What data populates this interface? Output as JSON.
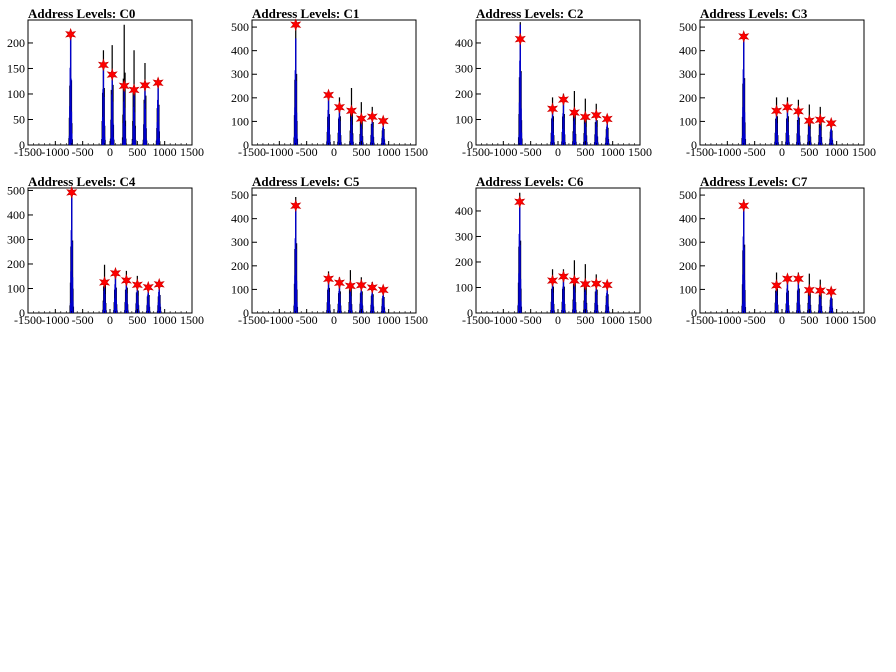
{
  "chart_data": [
    {
      "type": "histogram",
      "title": "Address Levels: C0",
      "xlim": [
        -1500,
        1500
      ],
      "ylim": [
        0,
        245
      ],
      "xticks": [
        -1500,
        -1000,
        -500,
        0,
        500,
        1000,
        1500
      ],
      "yticks": [
        0,
        50,
        100,
        150,
        200
      ],
      "black_peaks": [
        [
          -720,
          210
        ],
        [
          -120,
          185
        ],
        [
          40,
          195
        ],
        [
          260,
          235
        ],
        [
          440,
          185
        ],
        [
          640,
          160
        ],
        [
          880,
          130
        ]
      ],
      "blue_peaks": [
        [
          -720,
          215
        ],
        [
          -120,
          155
        ],
        [
          40,
          140
        ],
        [
          260,
          120
        ],
        [
          440,
          105
        ],
        [
          640,
          115
        ],
        [
          880,
          125
        ]
      ],
      "markers": [
        [
          -720,
          217
        ],
        [
          -120,
          157
        ],
        [
          40,
          138
        ],
        [
          260,
          116
        ],
        [
          440,
          108
        ],
        [
          640,
          117
        ],
        [
          880,
          122
        ]
      ]
    },
    {
      "type": "histogram",
      "title": "Address Levels: C1",
      "xlim": [
        -1500,
        1500
      ],
      "ylim": [
        0,
        530
      ],
      "xticks": [
        -1500,
        -1000,
        -500,
        0,
        500,
        1000,
        1500
      ],
      "yticks": [
        0,
        100,
        200,
        300,
        400,
        500
      ],
      "black_peaks": [
        [
          -700,
          500
        ],
        [
          -100,
          215
        ],
        [
          100,
          200
        ],
        [
          320,
          240
        ],
        [
          500,
          180
        ],
        [
          700,
          160
        ],
        [
          900,
          110
        ]
      ],
      "blue_peaks": [
        [
          -700,
          450
        ],
        [
          -100,
          210
        ],
        [
          100,
          165
        ],
        [
          320,
          140
        ],
        [
          500,
          110
        ],
        [
          700,
          120
        ],
        [
          900,
          100
        ]
      ],
      "markers": [
        [
          -700,
          510
        ],
        [
          -100,
          212
        ],
        [
          100,
          160
        ],
        [
          320,
          145
        ],
        [
          500,
          112
        ],
        [
          700,
          120
        ],
        [
          900,
          102
        ]
      ]
    },
    {
      "type": "histogram",
      "title": "Address Levels: C2",
      "xlim": [
        -1500,
        1500
      ],
      "ylim": [
        0,
        490
      ],
      "xticks": [
        -1500,
        -1000,
        -500,
        0,
        500,
        1000,
        1500
      ],
      "yticks": [
        0,
        100,
        200,
        300,
        400
      ],
      "black_peaks": [
        [
          -690,
          480
        ],
        [
          -100,
          185
        ],
        [
          100,
          200
        ],
        [
          300,
          210
        ],
        [
          500,
          180
        ],
        [
          700,
          160
        ],
        [
          900,
          110
        ]
      ],
      "blue_peaks": [
        [
          -690,
          470
        ],
        [
          -100,
          150
        ],
        [
          100,
          175
        ],
        [
          300,
          130
        ],
        [
          500,
          115
        ],
        [
          700,
          115
        ],
        [
          900,
          100
        ]
      ],
      "markers": [
        [
          -690,
          415
        ],
        [
          -100,
          142
        ],
        [
          100,
          178
        ],
        [
          300,
          127
        ],
        [
          500,
          110
        ],
        [
          700,
          117
        ],
        [
          900,
          102
        ]
      ]
    },
    {
      "type": "histogram",
      "title": "Address Levels: C3",
      "xlim": [
        -1500,
        1500
      ],
      "ylim": [
        0,
        530
      ],
      "xticks": [
        -1500,
        -1000,
        -500,
        0,
        500,
        1000,
        1500
      ],
      "yticks": [
        0,
        100,
        200,
        300,
        400,
        500
      ],
      "black_peaks": [
        [
          -700,
          470
        ],
        [
          -100,
          200
        ],
        [
          100,
          200
        ],
        [
          300,
          190
        ],
        [
          500,
          170
        ],
        [
          700,
          160
        ],
        [
          900,
          100
        ]
      ],
      "blue_peaks": [
        [
          -700,
          455
        ],
        [
          -100,
          150
        ],
        [
          100,
          160
        ],
        [
          300,
          140
        ],
        [
          500,
          110
        ],
        [
          700,
          100
        ],
        [
          900,
          90
        ]
      ],
      "markers": [
        [
          -700,
          460
        ],
        [
          -100,
          145
        ],
        [
          100,
          160
        ],
        [
          300,
          143
        ],
        [
          500,
          103
        ],
        [
          700,
          107
        ],
        [
          900,
          92
        ]
      ]
    },
    {
      "type": "histogram",
      "title": "Address Levels: C4",
      "xlim": [
        -1500,
        1500
      ],
      "ylim": [
        0,
        510
      ],
      "xticks": [
        -1500,
        -1000,
        -500,
        0,
        500,
        1000,
        1500
      ],
      "yticks": [
        0,
        100,
        200,
        300,
        400,
        500
      ],
      "black_peaks": [
        [
          -700,
          490
        ],
        [
          -100,
          195
        ],
        [
          100,
          170
        ],
        [
          300,
          170
        ],
        [
          500,
          150
        ],
        [
          700,
          120
        ],
        [
          900,
          120
        ]
      ],
      "blue_peaks": [
        [
          -700,
          480
        ],
        [
          -100,
          125
        ],
        [
          100,
          165
        ],
        [
          300,
          130
        ],
        [
          500,
          115
        ],
        [
          700,
          105
        ],
        [
          900,
          120
        ]
      ],
      "markers": [
        [
          -700,
          492
        ],
        [
          -100,
          125
        ],
        [
          100,
          162
        ],
        [
          300,
          133
        ],
        [
          500,
          115
        ],
        [
          700,
          105
        ],
        [
          900,
          117
        ]
      ]
    },
    {
      "type": "histogram",
      "title": "Address Levels: C5",
      "xlim": [
        -1500,
        1500
      ],
      "ylim": [
        0,
        530
      ],
      "xticks": [
        -1500,
        -1000,
        -500,
        0,
        500,
        1000,
        1500
      ],
      "yticks": [
        0,
        100,
        200,
        300,
        400,
        500
      ],
      "black_peaks": [
        [
          -700,
          490
        ],
        [
          -100,
          175
        ],
        [
          100,
          150
        ],
        [
          300,
          180
        ],
        [
          500,
          150
        ],
        [
          700,
          130
        ],
        [
          900,
          110
        ]
      ],
      "blue_peaks": [
        [
          -700,
          450
        ],
        [
          -100,
          145
        ],
        [
          100,
          130
        ],
        [
          300,
          115
        ],
        [
          500,
          125
        ],
        [
          700,
          110
        ],
        [
          900,
          100
        ]
      ],
      "markers": [
        [
          -700,
          455
        ],
        [
          -100,
          145
        ],
        [
          100,
          128
        ],
        [
          300,
          115
        ],
        [
          500,
          118
        ],
        [
          700,
          108
        ],
        [
          900,
          98
        ]
      ]
    },
    {
      "type": "histogram",
      "title": "Address Levels: C6",
      "xlim": [
        -1500,
        1500
      ],
      "ylim": [
        0,
        490
      ],
      "xticks": [
        -1500,
        -1000,
        -500,
        0,
        500,
        1000,
        1500
      ],
      "yticks": [
        0,
        100,
        200,
        300,
        400
      ],
      "black_peaks": [
        [
          -700,
          470
        ],
        [
          -100,
          170
        ],
        [
          100,
          170
        ],
        [
          300,
          205
        ],
        [
          500,
          190
        ],
        [
          700,
          150
        ],
        [
          900,
          120
        ]
      ],
      "blue_peaks": [
        [
          -700,
          440
        ],
        [
          -100,
          130
        ],
        [
          100,
          145
        ],
        [
          300,
          130
        ],
        [
          500,
          115
        ],
        [
          700,
          115
        ],
        [
          900,
          110
        ]
      ],
      "markers": [
        [
          -700,
          436
        ],
        [
          -100,
          127
        ],
        [
          100,
          143
        ],
        [
          300,
          127
        ],
        [
          500,
          113
        ],
        [
          700,
          115
        ],
        [
          900,
          110
        ]
      ]
    },
    {
      "type": "histogram",
      "title": "Address Levels: C7",
      "xlim": [
        -1500,
        1500
      ],
      "ylim": [
        0,
        530
      ],
      "xticks": [
        -1500,
        -1000,
        -500,
        0,
        500,
        1000,
        1500
      ],
      "yticks": [
        0,
        100,
        200,
        300,
        400,
        500
      ],
      "black_peaks": [
        [
          -700,
          480
        ],
        [
          -100,
          170
        ],
        [
          100,
          155
        ],
        [
          300,
          170
        ],
        [
          500,
          165
        ],
        [
          700,
          140
        ],
        [
          900,
          100
        ]
      ],
      "blue_peaks": [
        [
          -700,
          460
        ],
        [
          -100,
          120
        ],
        [
          100,
          145
        ],
        [
          300,
          140
        ],
        [
          500,
          100
        ],
        [
          700,
          95
        ],
        [
          900,
          90
        ]
      ],
      "markers": [
        [
          -700,
          455
        ],
        [
          -100,
          117
        ],
        [
          100,
          145
        ],
        [
          300,
          145
        ],
        [
          500,
          97
        ],
        [
          700,
          95
        ],
        [
          900,
          90
        ]
      ]
    }
  ],
  "colors": {
    "black_hist": "#000000",
    "blue_hist": "#0000cc",
    "marker": "#ff0000",
    "axis": "#000000"
  }
}
